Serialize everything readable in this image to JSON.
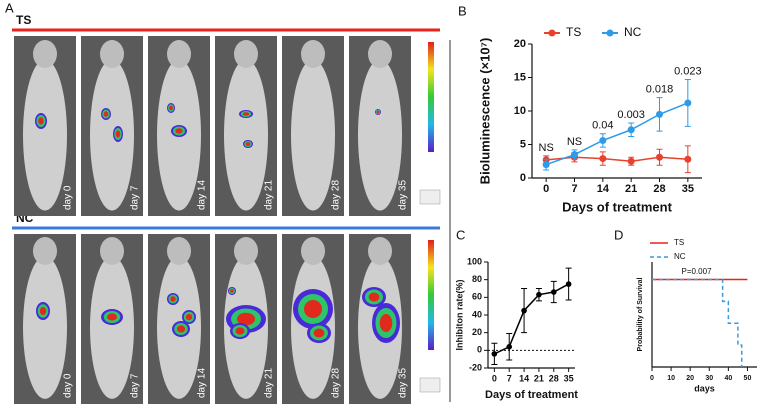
{
  "panel_labels": [
    "A",
    "B",
    "C",
    "D"
  ],
  "imaging": {
    "groups": [
      "TS",
      "NC"
    ],
    "days": [
      "day 0",
      "day 7",
      "day 14",
      "day 21",
      "day 28",
      "day 35"
    ]
  },
  "chart_data": [
    {
      "type": "line",
      "xlabel": "Days of treatment",
      "ylabel": "Bioluminescence (×10⁷)",
      "x": [
        0,
        7,
        14,
        21,
        28,
        35
      ],
      "xlim": [
        -3.5,
        38.5
      ],
      "xticks": [
        0,
        7,
        14,
        21,
        28,
        35
      ],
      "ylim": [
        0,
        20
      ],
      "yticks": [
        0,
        5,
        10,
        15,
        20
      ],
      "series": [
        {
          "name": "TS",
          "color": "#e8412e",
          "values": [
            2.7,
            3.1,
            2.9,
            2.5,
            3.1,
            2.8
          ],
          "errors": [
            0.6,
            0.7,
            1.0,
            0.6,
            1.2,
            2.0
          ]
        },
        {
          "name": "NC",
          "color": "#2e9be8",
          "values": [
            2.0,
            3.5,
            5.6,
            7.2,
            9.5,
            11.2
          ],
          "errors": [
            0.8,
            0.7,
            1.0,
            1.0,
            2.5,
            3.5
          ]
        }
      ],
      "annotations": [
        {
          "x": 0,
          "text": "NS"
        },
        {
          "x": 7,
          "text": "NS"
        },
        {
          "x": 14,
          "text": "0.04"
        },
        {
          "x": 21,
          "text": "0.003"
        },
        {
          "x": 28,
          "text": "0.018"
        },
        {
          "x": 35,
          "text": "0.023"
        }
      ]
    },
    {
      "type": "line",
      "xlabel": "Days of treatment",
      "ylabel": "Inhibiton rate(%)",
      "x": [
        0,
        7,
        14,
        21,
        28,
        35
      ],
      "xlim": [
        -3,
        38
      ],
      "xticks": [
        0,
        7,
        14,
        21,
        28,
        35
      ],
      "ylim": [
        -20,
        100
      ],
      "yticks": [
        -20,
        0,
        20,
        40,
        60,
        80,
        100
      ],
      "color": "#000000",
      "values": [
        -4,
        4,
        45,
        63,
        66,
        75
      ],
      "errors": [
        12,
        15,
        25,
        7,
        12,
        18
      ]
    },
    {
      "type": "step",
      "xlabel": "days",
      "ylabel": "Probability of Survival",
      "xlim": [
        0,
        55
      ],
      "xticks": [
        0,
        10,
        20,
        30,
        40,
        50
      ],
      "ylim": [
        0,
        120
      ],
      "series": [
        {
          "name": "TS",
          "color": "#e8231b",
          "line_style": "solid",
          "x": [
            0,
            50
          ],
          "values": [
            100,
            100
          ]
        },
        {
          "name": "NC",
          "color": "#3a9ad9",
          "line_style": "dashed",
          "x": [
            0,
            37,
            40,
            45,
            47
          ],
          "values": [
            100,
            75,
            50,
            25,
            0
          ]
        }
      ],
      "annotations": [
        {
          "text": "P=0.007"
        }
      ]
    }
  ]
}
